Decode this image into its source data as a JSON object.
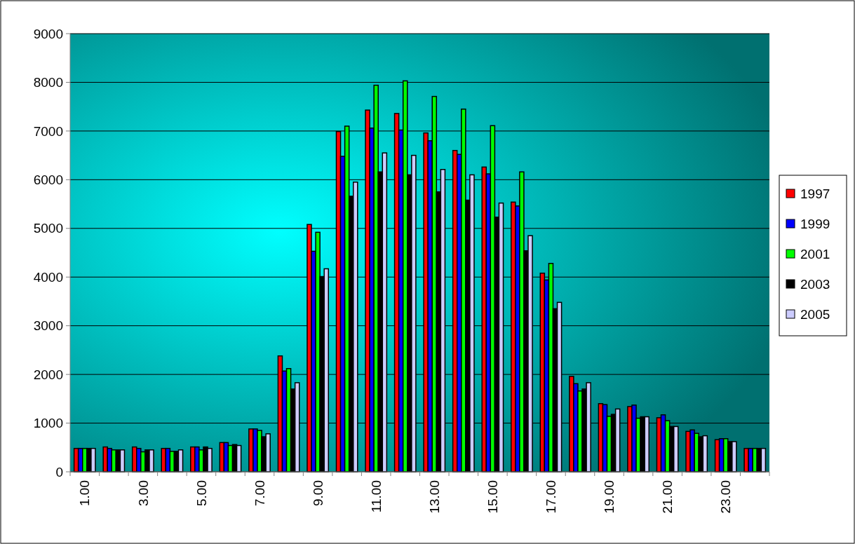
{
  "chart_data": {
    "type": "bar",
    "categories": [
      "1.00",
      null,
      "3.00",
      null,
      "5.00",
      null,
      "7.00",
      null,
      "9.00",
      null,
      "11.00",
      null,
      "13.00",
      null,
      "15.00",
      null,
      "17.00",
      null,
      "19.00",
      null,
      "21.00",
      null,
      "23.00",
      null
    ],
    "series": [
      {
        "name": "1997",
        "color": "#ff0000",
        "values": [
          480,
          510,
          510,
          480,
          510,
          600,
          880,
          2380,
          5080,
          6990,
          7430,
          7360,
          6960,
          6600,
          6260,
          5540,
          4080,
          1960,
          1400,
          1340,
          1110,
          830,
          660,
          480
        ]
      },
      {
        "name": "1999",
        "color": "#0000ff",
        "values": [
          480,
          480,
          480,
          480,
          510,
          600,
          880,
          2070,
          4530,
          6480,
          7060,
          7020,
          6800,
          6520,
          6120,
          5460,
          3940,
          1810,
          1380,
          1370,
          1170,
          860,
          680,
          480
        ]
      },
      {
        "name": "2001",
        "color": "#00ff00",
        "values": [
          480,
          450,
          410,
          420,
          450,
          540,
          850,
          2120,
          4920,
          7100,
          7940,
          8030,
          7710,
          7450,
          7110,
          6160,
          4280,
          1660,
          1140,
          1100,
          1050,
          790,
          680,
          480
        ]
      },
      {
        "name": "2003",
        "color": "#000000",
        "values": [
          480,
          450,
          450,
          420,
          510,
          560,
          720,
          1700,
          4010,
          5660,
          6160,
          6100,
          5750,
          5580,
          5230,
          4540,
          3350,
          1700,
          1180,
          1130,
          930,
          720,
          620,
          480
        ]
      },
      {
        "name": "2005",
        "color": "#ccccff",
        "values": [
          480,
          450,
          450,
          450,
          480,
          540,
          780,
          1830,
          4170,
          5950,
          6550,
          6500,
          6210,
          6100,
          5520,
          4850,
          3480,
          1830,
          1290,
          1130,
          930,
          740,
          620,
          480
        ]
      }
    ],
    "ylim": [
      0,
      9000
    ],
    "yticks": [
      0,
      1000,
      2000,
      3000,
      4000,
      5000,
      6000,
      7000,
      8000,
      9000
    ],
    "grid": "y",
    "legend": "right"
  }
}
